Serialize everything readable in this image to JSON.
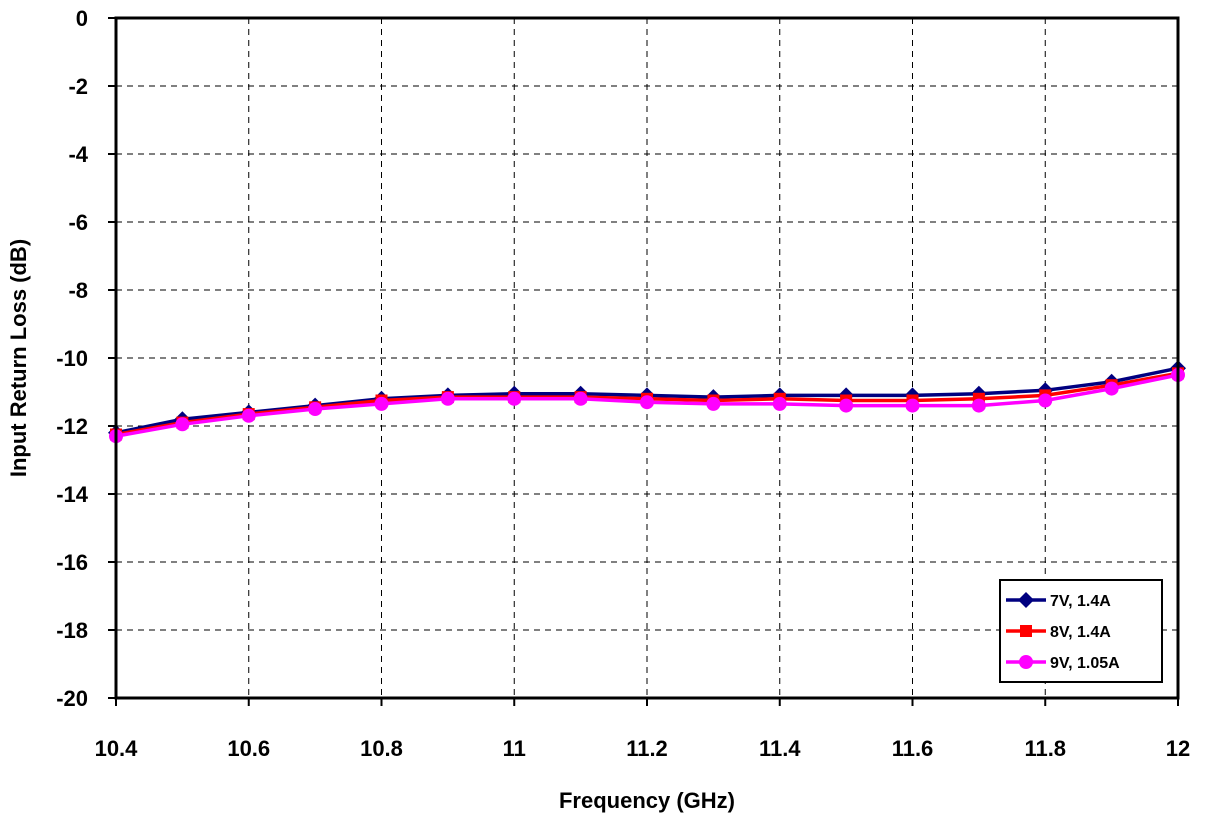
{
  "chart_data": {
    "type": "line",
    "title": "",
    "xlabel": "Frequency (GHz)",
    "ylabel": "Input Return Loss (dB)",
    "xlim": [
      10.4,
      12
    ],
    "ylim": [
      -20,
      0
    ],
    "x_ticks": [
      10.4,
      10.6,
      10.8,
      11,
      11.2,
      11.4,
      11.6,
      11.8,
      12
    ],
    "x_tick_labels": [
      "10.4",
      "10.6",
      "10.8",
      "11",
      "11.2",
      "11.4",
      "11.6",
      "11.8",
      "12"
    ],
    "y_ticks": [
      0,
      -2,
      -4,
      -6,
      -8,
      -10,
      -12,
      -14,
      -16,
      -18,
      -20
    ],
    "y_tick_labels": [
      "0",
      "-2",
      "-4",
      "-6",
      "-8",
      "-10",
      "-12",
      "-14",
      "-16",
      "-18",
      "-20"
    ],
    "grid": true,
    "legend_position": "bottom-right",
    "x": [
      10.4,
      10.5,
      10.6,
      10.7,
      10.8,
      10.9,
      11.0,
      11.1,
      11.2,
      11.3,
      11.4,
      11.5,
      11.6,
      11.7,
      11.8,
      11.9,
      12.0
    ],
    "series": [
      {
        "name": "7V, 1.4A",
        "color": "#000080",
        "marker": "diamond",
        "values": [
          -12.2,
          -11.8,
          -11.6,
          -11.4,
          -11.2,
          -11.1,
          -11.05,
          -11.05,
          -11.1,
          -11.15,
          -11.1,
          -11.1,
          -11.1,
          -11.05,
          -10.95,
          -10.7,
          -10.3
        ]
      },
      {
        "name": "8V, 1.4A",
        "color": "#ff0000",
        "marker": "square",
        "values": [
          -12.25,
          -11.9,
          -11.65,
          -11.45,
          -11.25,
          -11.15,
          -11.15,
          -11.15,
          -11.2,
          -11.25,
          -11.2,
          -11.25,
          -11.25,
          -11.2,
          -11.1,
          -10.8,
          -10.45
        ]
      },
      {
        "name": "9V, 1.05A",
        "color": "#ff00ff",
        "marker": "circle",
        "values": [
          -12.3,
          -11.95,
          -11.7,
          -11.5,
          -11.35,
          -11.2,
          -11.2,
          -11.2,
          -11.3,
          -11.35,
          -11.35,
          -11.4,
          -11.4,
          -11.4,
          -11.25,
          -10.9,
          -10.5
        ]
      }
    ]
  }
}
